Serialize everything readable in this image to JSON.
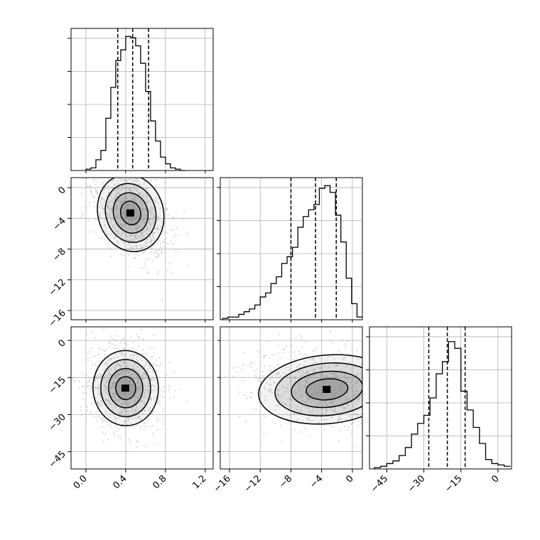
{
  "chart_data": [
    {
      "type": "histogram",
      "panel": "p0_0",
      "x": [
        0.0,
        0.05,
        0.1,
        0.15,
        0.2,
        0.25,
        0.3,
        0.35,
        0.4,
        0.45,
        0.5,
        0.55,
        0.6,
        0.65,
        0.7,
        0.75,
        0.8,
        0.85,
        0.9,
        0.95
      ],
      "counts": [
        0.01,
        0.02,
        0.08,
        0.15,
        0.39,
        0.62,
        0.82,
        0.9,
        1.0,
        0.99,
        0.93,
        0.8,
        0.59,
        0.37,
        0.22,
        0.1,
        0.05,
        0.02,
        0.01,
        0.0
      ],
      "quantiles": [
        0.32,
        0.47,
        0.63
      ],
      "xlim": [
        -0.15,
        1.28
      ],
      "grid": true
    },
    {
      "type": "histogram",
      "panel": "p1_1",
      "x": [
        -16.9,
        -16.2,
        -15.5,
        -14.8,
        -14.1,
        -13.4,
        -12.7,
        -12.0,
        -11.3,
        -10.6,
        -9.9,
        -9.2,
        -8.5,
        -7.8,
        -7.1,
        -6.4,
        -5.7,
        -5.0,
        -4.3,
        -3.6,
        -2.9,
        -2.2,
        -1.5,
        -0.8,
        -0.1,
        0.6
      ],
      "counts": [
        0.01,
        0.02,
        0.02,
        0.04,
        0.06,
        0.08,
        0.11,
        0.17,
        0.2,
        0.27,
        0.32,
        0.42,
        0.47,
        0.54,
        0.69,
        0.77,
        0.82,
        0.86,
        0.98,
        1.0,
        0.95,
        0.78,
        0.58,
        0.31,
        0.12,
        0.02
      ],
      "quantiles": [
        -8.0,
        -4.8,
        -2.1
      ],
      "xlim": [
        -17.2,
        1.3
      ],
      "grid": true
    },
    {
      "type": "histogram",
      "panel": "p2_2",
      "x": [
        -50,
        -47.5,
        -45,
        -42.5,
        -40,
        -37.5,
        -35,
        -32.5,
        -30,
        -27.5,
        -25,
        -22.5,
        -20,
        -17.5,
        -15,
        -12.5,
        -10,
        -7.5,
        -5,
        -2.5,
        0,
        2.5
      ],
      "counts": [
        0.01,
        0.02,
        0.04,
        0.06,
        0.1,
        0.16,
        0.26,
        0.34,
        0.4,
        0.53,
        0.71,
        0.8,
        0.95,
        0.9,
        0.58,
        0.44,
        0.31,
        0.19,
        0.07,
        0.04,
        0.03,
        0.02
      ],
      "quantiles": [
        -28.0,
        -20.5,
        -13.3
      ],
      "xlim": [
        -52,
        5.5
      ],
      "grid": true
    },
    {
      "type": "scatter-density",
      "panel": "p1_0",
      "peak": [
        0.45,
        -3.3
      ],
      "x_range": [
        -0.15,
        1.28
      ],
      "y_range": [
        -17.2,
        1.3
      ],
      "grid": true
    },
    {
      "type": "scatter-density",
      "panel": "p2_0",
      "peak": [
        0.4,
        -19.3
      ],
      "x_range": [
        -0.15,
        1.28
      ],
      "y_range": [
        -52,
        5.5
      ],
      "grid": true
    },
    {
      "type": "scatter-density",
      "panel": "p2_1",
      "peak": [
        -3.3,
        -19.8
      ],
      "x_range": [
        -17.2,
        1.3
      ],
      "y_range": [
        -52,
        5.5
      ],
      "grid": true
    }
  ],
  "axes": {
    "param0_ticks": [
      "0.0",
      "0.4",
      "0.8",
      "1.2"
    ],
    "param1_ticks": [
      "−16",
      "−12",
      "−8",
      "−4",
      "0"
    ],
    "param2_ticks": [
      "−45",
      "−30",
      "−15",
      "0"
    ]
  },
  "colors": {
    "contour": "#000000",
    "density": "#808080",
    "points": "#a8a8a8",
    "grid": "#b0b0b0"
  }
}
